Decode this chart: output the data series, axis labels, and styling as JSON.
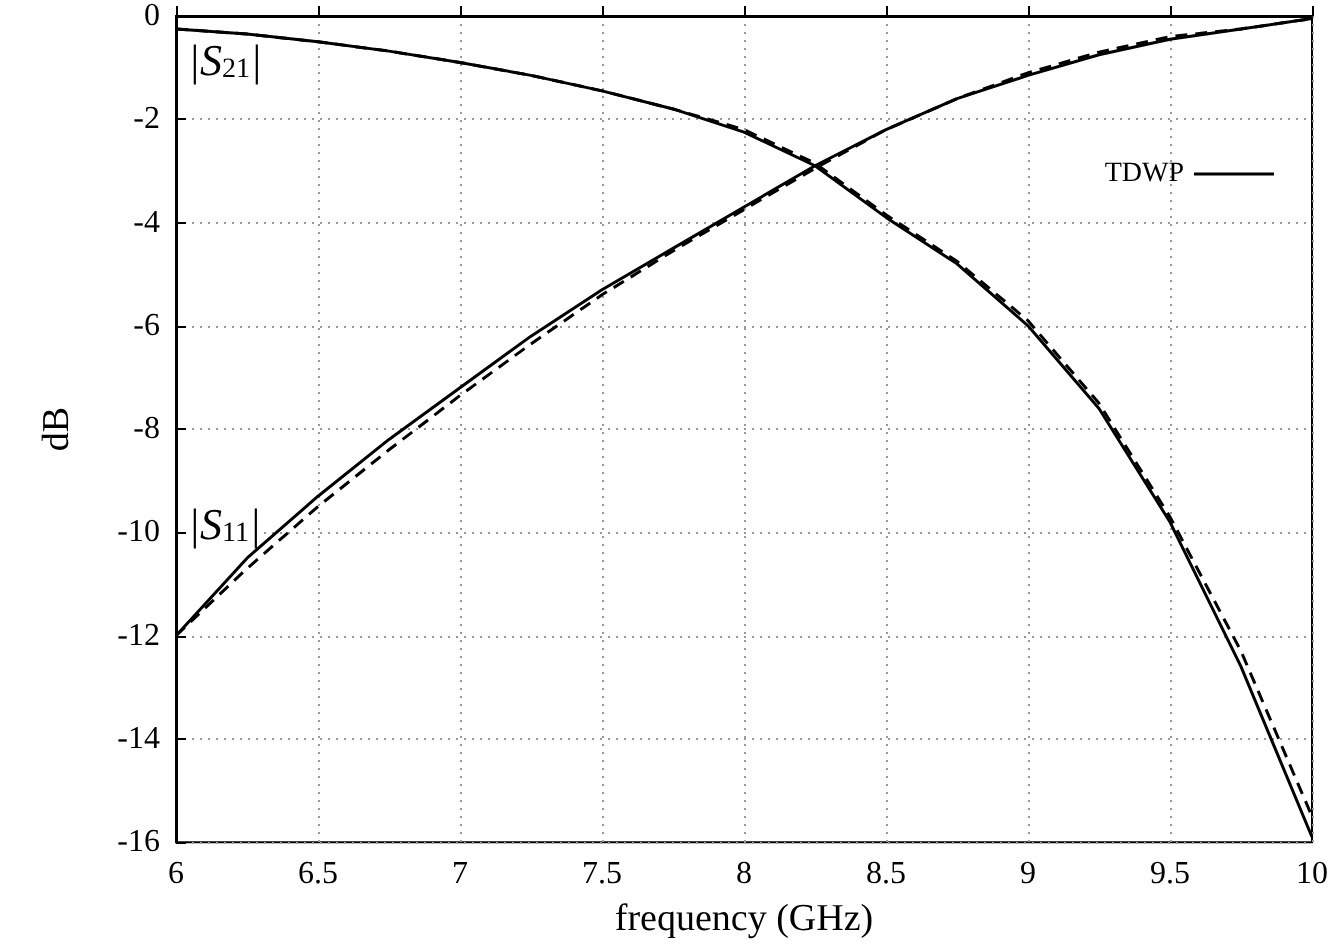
{
  "chart_data": {
    "type": "line",
    "xlabel": "frequency (GHz)",
    "ylabel": "dB",
    "xlim": [
      6,
      10
    ],
    "xticks": [
      6,
      6.5,
      7,
      7.5,
      8,
      8.5,
      9,
      9.5,
      10
    ],
    "ylim": [
      -16,
      0
    ],
    "yticks": [
      -16,
      -14,
      -12,
      -10,
      -8,
      -6,
      -4,
      -2,
      0
    ],
    "grid": true,
    "legend": "top right",
    "marker": "none",
    "annotations": [
      "|S$_{21}$|",
      "|S$_{11}$|"
    ],
    "series": [
      {
        "name": "TDWP",
        "color": "#000000",
        "line_style": "solid",
        "x": [
          6,
          6.25,
          6.5,
          6.75,
          7,
          7.25,
          7.5,
          7.75,
          8,
          8.25,
          8.5,
          8.75,
          9,
          9.25,
          9.5,
          9.75,
          10
        ],
        "values": [
          -0.25,
          -0.35,
          -0.5,
          -0.68,
          -0.9,
          -1.15,
          -1.45,
          -1.8,
          -2.25,
          -2.9,
          -3.9,
          -4.8,
          -6.0,
          -7.6,
          -9.8,
          -12.6,
          -15.9
        ]
      },
      {
        "color": "#000000",
        "line_style": "dashed",
        "x": [
          6,
          6.25,
          6.5,
          6.75,
          7,
          7.25,
          7.5,
          7.75,
          8,
          8.25,
          8.5,
          8.75,
          9,
          9.25,
          9.5,
          9.75,
          10
        ],
        "values": [
          -0.25,
          -0.35,
          -0.5,
          -0.68,
          -0.9,
          -1.15,
          -1.45,
          -1.8,
          -2.2,
          -2.85,
          -3.85,
          -4.75,
          -5.9,
          -7.5,
          -9.7,
          -12.3,
          -15.5
        ]
      },
      {
        "color": "#000000",
        "line_style": "solid",
        "x": [
          6,
          6.25,
          6.5,
          6.75,
          7,
          7.25,
          7.5,
          7.75,
          8,
          8.25,
          8.5,
          8.75,
          9,
          9.25,
          9.5,
          9.75,
          10
        ],
        "values": [
          -12,
          -10.5,
          -9.3,
          -8.2,
          -7.2,
          -6.2,
          -5.3,
          -4.5,
          -3.7,
          -2.9,
          -2.2,
          -1.6,
          -1.15,
          -0.75,
          -0.45,
          -0.25,
          -0.05
        ]
      },
      {
        "color": "#000000",
        "line_style": "dashed",
        "x": [
          6,
          6.25,
          6.5,
          6.75,
          7,
          7.25,
          7.5,
          7.75,
          8,
          8.25,
          8.5,
          8.75,
          9,
          9.25,
          9.5,
          9.75,
          10
        ],
        "values": [
          -12,
          -10.7,
          -9.5,
          -8.4,
          -7.35,
          -6.35,
          -5.4,
          -4.55,
          -3.75,
          -2.95,
          -2.2,
          -1.6,
          -1.1,
          -0.7,
          -0.4,
          -0.25,
          -0.05
        ]
      }
    ]
  }
}
